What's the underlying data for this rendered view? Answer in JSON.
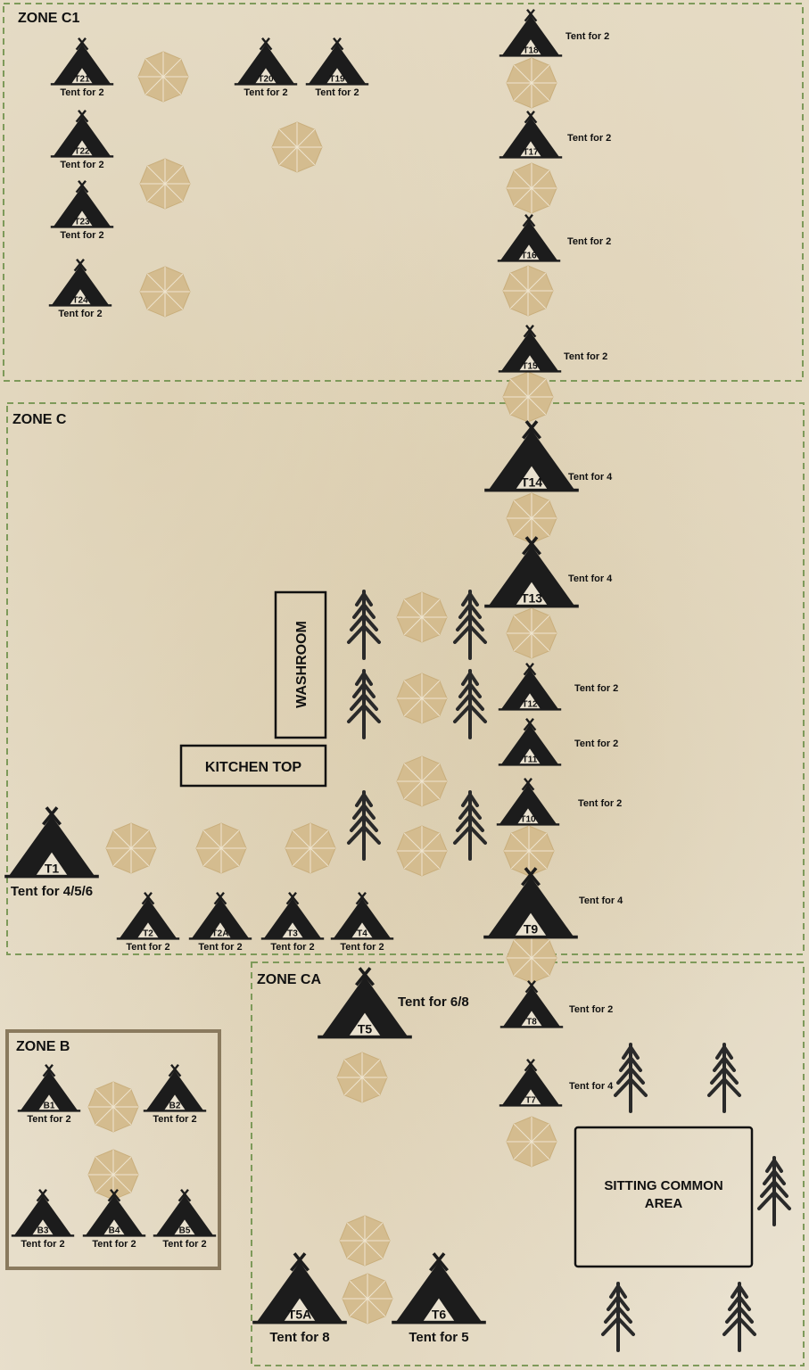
{
  "zones": [
    {
      "id": "c1",
      "label": "ZONE C1"
    },
    {
      "id": "c",
      "label": "ZONE C"
    },
    {
      "id": "ca",
      "label": "ZONE CA"
    },
    {
      "id": "b",
      "label": "ZONE B"
    }
  ],
  "tents": [
    {
      "code": "T21",
      "caption": "Tent for 2"
    },
    {
      "code": "T22",
      "caption": "Tent for 2"
    },
    {
      "code": "T23",
      "caption": "Tent for 2"
    },
    {
      "code": "T24",
      "caption": "Tent for 2"
    },
    {
      "code": "T20",
      "caption": "Tent for 2"
    },
    {
      "code": "T19",
      "caption": "Tent for 2"
    },
    {
      "code": "T18",
      "caption": "Tent for 2"
    },
    {
      "code": "T17",
      "caption": "Tent for 2"
    },
    {
      "code": "T16",
      "caption": "Tent for 2"
    },
    {
      "code": "T15",
      "caption": "Tent for 2"
    },
    {
      "code": "T14",
      "caption": "Tent for 4"
    },
    {
      "code": "T13",
      "caption": "Tent for 4"
    },
    {
      "code": "T12",
      "caption": "Tent for 2"
    },
    {
      "code": "T11",
      "caption": "Tent for 2"
    },
    {
      "code": "T10",
      "caption": "Tent for 2"
    },
    {
      "code": "T9",
      "caption": "Tent for 4"
    },
    {
      "code": "T1",
      "caption": "Tent for 4/5/6"
    },
    {
      "code": "T2",
      "caption": "Tent for 2"
    },
    {
      "code": "T2A",
      "caption": "Tent for 2"
    },
    {
      "code": "T3",
      "caption": "Tent for 2"
    },
    {
      "code": "T4",
      "caption": "Tent for 2"
    },
    {
      "code": "T5",
      "caption": "Tent for 6/8"
    },
    {
      "code": "T8",
      "caption": "Tent for 2"
    },
    {
      "code": "T7",
      "caption": "Tent for 4"
    },
    {
      "code": "T5A",
      "caption": "Tent for 8"
    },
    {
      "code": "T6",
      "caption": "Tent for 5"
    },
    {
      "code": "B1",
      "caption": "Tent for 2"
    },
    {
      "code": "B2",
      "caption": "Tent for 2"
    },
    {
      "code": "B3",
      "caption": "Tent for 2"
    },
    {
      "code": "B4",
      "caption": "Tent for 2"
    },
    {
      "code": "B5",
      "caption": "Tent for 2"
    }
  ],
  "facilities": {
    "washroom": "WASHROOM",
    "kitchen": "KITCHEN TOP",
    "sitting_line1": "SITTING COMMON",
    "sitting_line2": "AREA"
  },
  "colors": {
    "background": "#e9e1cf",
    "zone_border": "#7e9a5a",
    "zone_b_border": "#8a7a5e",
    "tent": "#1c1c1c",
    "umbrella": "#d4bc8f",
    "tree": "#2a2a2a"
  },
  "icons": {
    "tent": "tent-icon",
    "umbrella": "umbrella-icon",
    "tree": "pine-tree-icon"
  }
}
